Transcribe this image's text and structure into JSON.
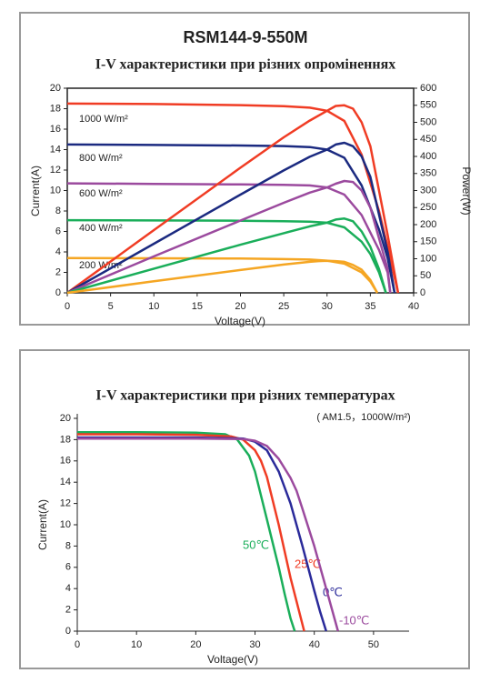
{
  "chart_data": [
    {
      "type": "line",
      "title": "RSM144-9-550M",
      "subtitle": "I-V характеристики при різних опроміненнях",
      "x_label": "Voltage(V)",
      "y_label": "Current(A)",
      "y2_label": "Power(W)",
      "xlim": [
        0,
        40
      ],
      "xticks": [
        0,
        5,
        10,
        15,
        20,
        25,
        30,
        35,
        40
      ],
      "ylim": [
        0,
        20
      ],
      "yticks": [
        0,
        2,
        4,
        6,
        8,
        10,
        12,
        14,
        16,
        18,
        20
      ],
      "y2lim": [
        0,
        600
      ],
      "y2ticks": [
        0,
        50,
        100,
        150,
        200,
        250,
        300,
        350,
        400,
        450,
        500,
        550,
        600
      ],
      "grid": false,
      "frame": true,
      "series": [
        {
          "name": "1000 W/m²",
          "color": "#f03c24",
          "x": [
            0,
            10,
            20,
            25,
            28,
            30,
            32,
            34,
            36,
            37,
            38.2
          ],
          "values": [
            18.5,
            18.45,
            18.35,
            18.25,
            18.1,
            17.8,
            16.8,
            13.5,
            8,
            4.5,
            0
          ]
        },
        {
          "name": "800 W/m²",
          "color": "#1b2a80",
          "x": [
            0,
            10,
            20,
            25,
            28,
            30,
            32,
            34,
            36,
            37,
            37.8
          ],
          "values": [
            14.5,
            14.45,
            14.4,
            14.35,
            14.25,
            14.0,
            13.2,
            10.5,
            6.2,
            3.4,
            0
          ]
        },
        {
          "name": "600 W/m²",
          "color": "#9b4a9e",
          "x": [
            0,
            10,
            20,
            25,
            28,
            30,
            32,
            34,
            36,
            37,
            37.3
          ],
          "values": [
            10.7,
            10.65,
            10.6,
            10.55,
            10.5,
            10.3,
            9.6,
            7.6,
            4.2,
            2.0,
            0
          ]
        },
        {
          "name": "400 W/m²",
          "color": "#1aae5a",
          "x": [
            0,
            10,
            20,
            25,
            28,
            30,
            32,
            34,
            35,
            36,
            36.8
          ],
          "values": [
            7.1,
            7.08,
            7.05,
            7.0,
            6.95,
            6.85,
            6.4,
            5.0,
            3.8,
            2.0,
            0
          ]
        },
        {
          "name": "200 W/m²",
          "color": "#f5a623",
          "x": [
            0,
            10,
            20,
            25,
            28,
            30,
            32,
            34,
            35,
            35.8
          ],
          "values": [
            3.4,
            3.38,
            3.35,
            3.3,
            3.25,
            3.15,
            2.85,
            2.0,
            1.1,
            0
          ]
        },
        {
          "color": "#f03c24",
          "axis": "y2",
          "x": [
            0,
            10,
            20,
            25,
            28,
            30,
            31,
            32,
            33,
            34,
            35,
            36,
            37,
            38.2
          ],
          "values": [
            0,
            184,
            367,
            456,
            505,
            534,
            548,
            550,
            540,
            500,
            430,
            300,
            170,
            0
          ]
        },
        {
          "color": "#1b2a80",
          "axis": "y2",
          "x": [
            0,
            10,
            20,
            25,
            28,
            30,
            31,
            32,
            33,
            34,
            35,
            36,
            37,
            37.8
          ],
          "values": [
            0,
            144,
            288,
            359,
            399,
            420,
            435,
            440,
            430,
            400,
            340,
            230,
            120,
            0
          ]
        },
        {
          "color": "#9b4a9e",
          "axis": "y2",
          "x": [
            0,
            10,
            20,
            25,
            28,
            30,
            31,
            32,
            33,
            34,
            35,
            36,
            37,
            37.3
          ],
          "values": [
            0,
            107,
            212,
            264,
            294,
            309,
            320,
            328,
            325,
            300,
            250,
            160,
            70,
            0
          ]
        },
        {
          "color": "#1aae5a",
          "axis": "y2",
          "x": [
            0,
            10,
            20,
            25,
            28,
            30,
            31,
            32,
            33,
            34,
            35,
            36,
            36.8
          ],
          "values": [
            0,
            71,
            141,
            175,
            195,
            206,
            215,
            218,
            210,
            180,
            135,
            70,
            0
          ]
        },
        {
          "color": "#f5a623",
          "axis": "y2",
          "x": [
            0,
            10,
            20,
            25,
            28,
            29,
            30,
            31,
            32,
            33,
            34,
            35,
            35.8
          ],
          "values": [
            0,
            34,
            67,
            83,
            91,
            93,
            94,
            93,
            91,
            82,
            68,
            38,
            0
          ]
        }
      ]
    },
    {
      "type": "line",
      "title": "I-V характеристики при різних температурах",
      "note": "( AM1.5，1000W/m²)",
      "x_label": "Voltage(V)",
      "y_label": "Current(A)",
      "xlim": [
        0,
        56
      ],
      "xticks": [
        0,
        10,
        20,
        30,
        40,
        50
      ],
      "ylim": [
        0,
        20
      ],
      "yticks": [
        0,
        2,
        4,
        6,
        8,
        10,
        12,
        14,
        16,
        18,
        20
      ],
      "grid": false,
      "frame": false,
      "series": [
        {
          "name": "50℃",
          "color": "#1aae5a",
          "x": [
            0,
            10,
            20,
            25,
            27,
            29,
            30,
            32,
            34,
            35,
            36,
            36.7
          ],
          "values": [
            18.7,
            18.7,
            18.65,
            18.5,
            18,
            16.5,
            15,
            10.5,
            6,
            3.5,
            1.2,
            0
          ]
        },
        {
          "name": "25℃",
          "color": "#f03c24",
          "x": [
            0,
            10,
            20,
            26,
            28,
            30,
            31,
            32,
            34,
            36,
            37,
            38.3
          ],
          "values": [
            18.5,
            18.5,
            18.45,
            18.3,
            18.0,
            17,
            16,
            14.5,
            10,
            5,
            2.8,
            0
          ]
        },
        {
          "name": "0℃",
          "color": "#2a2a9a",
          "x": [
            0,
            10,
            20,
            28,
            30,
            32,
            34,
            35,
            36,
            38,
            40,
            41,
            42
          ],
          "values": [
            18.2,
            18.2,
            18.2,
            18.1,
            17.8,
            17,
            15,
            13.5,
            12,
            8,
            3.8,
            1.8,
            0
          ]
        },
        {
          "name": "-10℃",
          "color": "#9b4a9e",
          "x": [
            0,
            10,
            20,
            28,
            30,
            32,
            34,
            36,
            37,
            38,
            40,
            42,
            43,
            44
          ],
          "values": [
            18.1,
            18.1,
            18.1,
            18.05,
            17.9,
            17.4,
            16.2,
            14.4,
            13.2,
            11.5,
            8,
            4,
            2,
            0
          ]
        }
      ]
    }
  ]
}
